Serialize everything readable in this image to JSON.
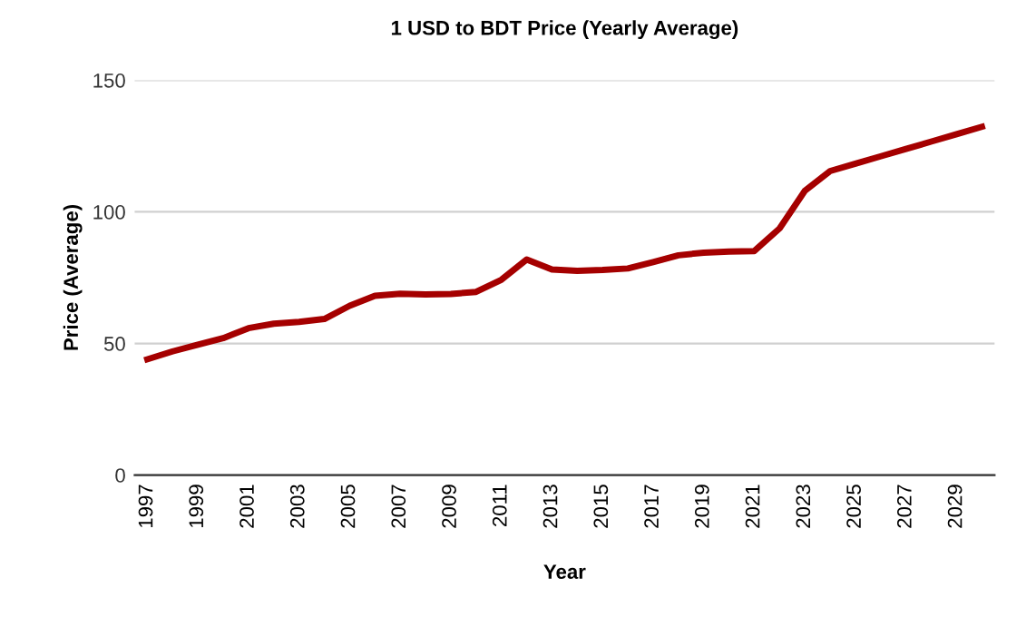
{
  "chart_data": {
    "type": "line",
    "title": "1 USD to BDT Price (Yearly Average)",
    "xlabel": "Year",
    "ylabel": "Price (Average)",
    "categories": [
      "1997",
      null,
      "1999",
      null,
      "2001",
      null,
      "2003",
      null,
      "2005",
      null,
      "2007",
      null,
      "2009",
      null,
      "2011",
      null,
      "2013",
      null,
      "2015",
      null,
      "2017",
      null,
      "2019",
      null,
      "2021",
      null,
      "2023",
      null,
      "2025",
      null,
      "2027",
      null,
      "2029",
      null
    ],
    "series": [
      {
        "color": "#a50000",
        "values": [
          44,
          47,
          49.5,
          52,
          55.8,
          57.5,
          58.2,
          59.3,
          64.3,
          68.1,
          68.9,
          68.6,
          68.8,
          69.6,
          74.2,
          81.9,
          78.1,
          77.6,
          77.9,
          78.5,
          80.9,
          83.5,
          84.5,
          84.9,
          85.1,
          93.7,
          108,
          115.5,
          118.3,
          121.1,
          123.9,
          126.7,
          129.5,
          132.3
        ]
      }
    ],
    "ylim": [
      0,
      150
    ],
    "yticks": [
      0,
      50,
      100,
      150
    ],
    "grid": "y",
    "legend": false,
    "marker": "none",
    "line_style": "solid"
  }
}
